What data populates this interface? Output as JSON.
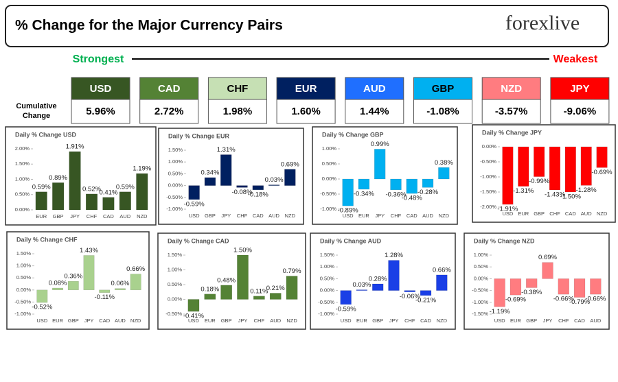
{
  "header": {
    "title": "% Change for the Major Currency Pairs",
    "logo": "forexlive"
  },
  "summary": {
    "strongest": "Strongest",
    "weakest": "Weakest",
    "row_label": "Cumulative Change",
    "currencies": [
      "USD",
      "CAD",
      "CHF",
      "EUR",
      "AUD",
      "GBP",
      "NZD",
      "JPY"
    ],
    "values": [
      "5.96%",
      "2.72%",
      "1.98%",
      "1.60%",
      "1.44%",
      "-1.08%",
      "-3.57%",
      "-9.06%"
    ],
    "colors": [
      "#375623",
      "#548235",
      "#c6e0b4",
      "#002060",
      "#1f6fff",
      "#00b0f0",
      "#ff7c80",
      "#ff0000"
    ],
    "text_colors": [
      "#ffffff",
      "#ffffff",
      "#000000",
      "#ffffff",
      "#ffffff",
      "#000000",
      "#ffffff",
      "#ffffff"
    ]
  },
  "chart_data": [
    {
      "type": "bar",
      "title": "Daily % Change USD",
      "categories": [
        "EUR",
        "GBP",
        "JPY",
        "CHF",
        "CAD",
        "AUD",
        "NZD"
      ],
      "values": [
        0.59,
        0.89,
        1.91,
        0.52,
        0.41,
        0.59,
        1.19
      ],
      "value_labels": [
        "0.59%",
        "0.89%",
        "1.91%",
        "0.52%",
        "0.41%",
        "0.59%",
        "1.19%"
      ],
      "color": "#375623",
      "ylim": [
        0,
        2
      ],
      "yticks": [
        {
          "value": 0,
          "label": "0.00%"
        },
        {
          "value": 0.5,
          "label": "0.50%"
        },
        {
          "value": 1,
          "label": "1.00%"
        },
        {
          "value": 1.5,
          "label": "1.50%"
        },
        {
          "value": 2,
          "label": "2.00%"
        }
      ]
    },
    {
      "type": "bar",
      "title": "Daily % Change EUR",
      "categories": [
        "USD",
        "GBP",
        "JPY",
        "CHF",
        "CAD",
        "AUD",
        "NZD"
      ],
      "values": [
        -0.59,
        0.34,
        1.31,
        -0.08,
        -0.18,
        0.03,
        0.69
      ],
      "value_labels": [
        "-0.59%",
        "0.34%",
        "1.31%",
        "-0.08%",
        "-0.18%",
        "0.03%",
        "0.69%"
      ],
      "color": "#002060",
      "ylim": [
        -1,
        1.5
      ],
      "yticks": [
        {
          "value": -1,
          "label": "-1.00%"
        },
        {
          "value": -0.5,
          "label": "-0.50%"
        },
        {
          "value": 0,
          "label": "0.00%"
        },
        {
          "value": 0.5,
          "label": "0.50%"
        },
        {
          "value": 1,
          "label": "1.00%"
        },
        {
          "value": 1.5,
          "label": "1.50%"
        }
      ]
    },
    {
      "type": "bar",
      "title": "Daily % Change GBP",
      "categories": [
        "USD",
        "EUR",
        "JPY",
        "CHF",
        "CAD",
        "AUD",
        "NZD"
      ],
      "values": [
        -0.89,
        -0.34,
        0.99,
        -0.36,
        -0.48,
        -0.28,
        0.38
      ],
      "value_labels": [
        "-0.89%",
        "-0.34%",
        "0.99%",
        "-0.36%",
        "-0.48%",
        "-0.28%",
        "0.38%"
      ],
      "color": "#00b0f0",
      "ylim": [
        -1,
        1
      ],
      "yticks": [
        {
          "value": -1,
          "label": "-1.00%"
        },
        {
          "value": -0.5,
          "label": "-0.50%"
        },
        {
          "value": 0,
          "label": "0.00%"
        },
        {
          "value": 0.5,
          "label": "0.50%"
        },
        {
          "value": 1,
          "label": "1.00%"
        }
      ]
    },
    {
      "type": "bar",
      "title": "Daily % Change JPY",
      "categories": [
        "USD",
        "EUR",
        "GBP",
        "CHF",
        "CAD",
        "AUD",
        "NZD"
      ],
      "values": [
        -1.91,
        -1.31,
        -0.99,
        -1.43,
        -1.5,
        -1.28,
        -0.69
      ],
      "value_labels": [
        "-1.91%",
        "-1.31%",
        "-0.99%",
        "-1.43%",
        "-1.50%",
        "-1.28%",
        "-0.69%"
      ],
      "color": "#ff0000",
      "ylim": [
        -2,
        0
      ],
      "yticks": [
        {
          "value": -2,
          "label": "-2.00%"
        },
        {
          "value": -1.5,
          "label": "-1.50%"
        },
        {
          "value": -1,
          "label": "-1.00%"
        },
        {
          "value": -0.5,
          "label": "-0.50%"
        },
        {
          "value": 0,
          "label": "0.00%"
        }
      ]
    },
    {
      "type": "bar",
      "title": "Daily % Change CHF",
      "categories": [
        "USD",
        "EUR",
        "GBP",
        "JPY",
        "CAD",
        "AUD",
        "NZD"
      ],
      "values": [
        -0.52,
        0.08,
        0.36,
        1.43,
        -0.11,
        0.06,
        0.66
      ],
      "value_labels": [
        "-0.52%",
        "0.08%",
        "0.36%",
        "1.43%",
        "-0.11%",
        "0.06%",
        "0.66%"
      ],
      "color": "#a9d18e",
      "ylim": [
        -1,
        1.5
      ],
      "yticks": [
        {
          "value": -1,
          "label": "-1.00%"
        },
        {
          "value": -0.5,
          "label": "-0.50%"
        },
        {
          "value": 0,
          "label": "0.00%"
        },
        {
          "value": 0.5,
          "label": "0.50%"
        },
        {
          "value": 1,
          "label": "1.00%"
        },
        {
          "value": 1.5,
          "label": "1.50%"
        }
      ]
    },
    {
      "type": "bar",
      "title": "Daily % Change CAD",
      "categories": [
        "USD",
        "EUR",
        "GBP",
        "JPY",
        "CHF",
        "AUD",
        "NZD"
      ],
      "values": [
        -0.41,
        0.18,
        0.48,
        1.5,
        0.11,
        0.21,
        0.79
      ],
      "value_labels": [
        "-0.41%",
        "0.18%",
        "0.48%",
        "1.50%",
        "0.11%",
        "0.21%",
        "0.79%"
      ],
      "color": "#548235",
      "ylim": [
        -0.5,
        1.5
      ],
      "yticks": [
        {
          "value": -0.5,
          "label": "-0.50%"
        },
        {
          "value": 0,
          "label": "0.00%"
        },
        {
          "value": 0.5,
          "label": "0.50%"
        },
        {
          "value": 1,
          "label": "1.00%"
        },
        {
          "value": 1.5,
          "label": "1.50%"
        }
      ]
    },
    {
      "type": "bar",
      "title": "Daily % Change AUD",
      "categories": [
        "USD",
        "EUR",
        "GBP",
        "JPY",
        "CHF",
        "CAD",
        "NZD"
      ],
      "values": [
        -0.59,
        0.03,
        0.28,
        1.28,
        -0.06,
        -0.21,
        0.66
      ],
      "value_labels": [
        "-0.59%",
        "0.03%",
        "0.28%",
        "1.28%",
        "-0.06%",
        "-0.21%",
        "0.66%"
      ],
      "color": "#1a3fe6",
      "ylim": [
        -1,
        1.5
      ],
      "yticks": [
        {
          "value": -1,
          "label": "-1.00%"
        },
        {
          "value": -0.5,
          "label": "-0.50%"
        },
        {
          "value": 0,
          "label": "0.00%"
        },
        {
          "value": 0.5,
          "label": "0.50%"
        },
        {
          "value": 1,
          "label": "1.00%"
        },
        {
          "value": 1.5,
          "label": "1.50%"
        }
      ]
    },
    {
      "type": "bar",
      "title": "Daily % Change NZD",
      "categories": [
        "USD",
        "EUR",
        "GBP",
        "JPY",
        "CHF",
        "CAD",
        "AUD"
      ],
      "values": [
        -1.19,
        -0.69,
        -0.38,
        0.69,
        -0.66,
        -0.79,
        -0.66
      ],
      "value_labels": [
        "-1.19%",
        "-0.69%",
        "-0.38%",
        "0.69%",
        "-0.66%",
        "-0.79%",
        "-0.66%"
      ],
      "color": "#ff7c80",
      "ylim": [
        -1.5,
        1
      ],
      "yticks": [
        {
          "value": -1.5,
          "label": "-1.50%"
        },
        {
          "value": -1,
          "label": "-1.00%"
        },
        {
          "value": -0.5,
          "label": "-0.50%"
        },
        {
          "value": 0,
          "label": "0.00%"
        },
        {
          "value": 0.5,
          "label": "0.50%"
        },
        {
          "value": 1,
          "label": "1.00%"
        }
      ]
    }
  ]
}
